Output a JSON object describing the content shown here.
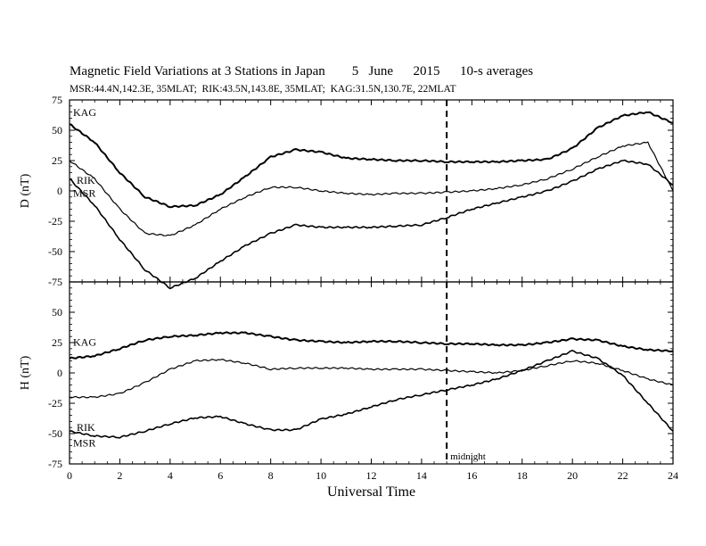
{
  "header": {
    "title_main": "Magnetic Field Variations at 3 Stations in Japan",
    "title_date": "5   June      2015",
    "title_avg": "10-s averages",
    "subtitle": "MSR:44.4N,142.3E, 35MLAT;  RIK:43.5N,143.8E, 35MLAT;  KAG:31.5N,130.7E, 22MLAT"
  },
  "annotations": {
    "midnight": "midnight"
  },
  "chart_data": [
    {
      "type": "line",
      "panel": "D",
      "ylabel": "D (nT)",
      "xlabel": "Universal Time",
      "xlim": [
        0,
        24
      ],
      "ylim": [
        -75,
        75
      ],
      "yticks": [
        -75,
        -50,
        -25,
        0,
        25,
        50,
        75
      ],
      "xticks": [
        0,
        2,
        4,
        6,
        8,
        10,
        12,
        14,
        16,
        18,
        20,
        22,
        24
      ],
      "vline": 15,
      "x": [
        0,
        1,
        2,
        3,
        4,
        5,
        6,
        7,
        8,
        9,
        10,
        11,
        12,
        13,
        14,
        15,
        16,
        17,
        18,
        19,
        20,
        21,
        22,
        23,
        24
      ],
      "series": [
        {
          "name": "KAG",
          "values": [
            55,
            40,
            15,
            -5,
            -13,
            -12,
            -3,
            12,
            28,
            34,
            32,
            27,
            26,
            25,
            25,
            24,
            24,
            24,
            25,
            26,
            35,
            52,
            62,
            65,
            56
          ]
        },
        {
          "name": "RIK",
          "values": [
            25,
            10,
            -15,
            -35,
            -37,
            -28,
            -15,
            -5,
            3,
            3,
            0,
            -2,
            -3,
            -2,
            -2,
            -1,
            0,
            2,
            5,
            10,
            18,
            28,
            37,
            40,
            0
          ]
        },
        {
          "name": "MSR",
          "values": [
            10,
            -12,
            -40,
            -65,
            -80,
            -72,
            -58,
            -45,
            -35,
            -28,
            -30,
            -30,
            -30,
            -29,
            -28,
            -22,
            -15,
            -10,
            -5,
            0,
            8,
            18,
            25,
            22,
            5
          ]
        }
      ]
    },
    {
      "type": "line",
      "panel": "H",
      "ylabel": "H (nT)",
      "xlabel": "Universal Time",
      "xlim": [
        0,
        24
      ],
      "ylim": [
        -75,
        75
      ],
      "yticks": [
        -75,
        -50,
        -25,
        0,
        25,
        50,
        75
      ],
      "xticks": [
        0,
        2,
        4,
        6,
        8,
        10,
        12,
        14,
        16,
        18,
        20,
        22,
        24
      ],
      "vline": 15,
      "x": [
        0,
        1,
        2,
        3,
        4,
        5,
        6,
        7,
        8,
        9,
        10,
        11,
        12,
        13,
        14,
        15,
        16,
        17,
        18,
        19,
        20,
        21,
        22,
        23,
        24
      ],
      "series": [
        {
          "name": "KAG",
          "values": [
            12,
            14,
            20,
            27,
            30,
            31,
            33,
            33,
            30,
            27,
            26,
            25,
            26,
            26,
            25,
            24,
            24,
            23,
            23,
            25,
            28,
            27,
            22,
            19,
            18
          ]
        },
        {
          "name": "RIK",
          "values": [
            -20,
            -20,
            -17,
            -8,
            3,
            10,
            11,
            8,
            3,
            4,
            4,
            4,
            3,
            3,
            3,
            2,
            1,
            0,
            2,
            6,
            10,
            8,
            2,
            -5,
            -10
          ]
        },
        {
          "name": "MSR",
          "values": [
            -48,
            -52,
            -53,
            -48,
            -42,
            -37,
            -36,
            -42,
            -47,
            -47,
            -38,
            -34,
            -28,
            -22,
            -18,
            -14,
            -10,
            -5,
            2,
            10,
            18,
            12,
            -2,
            -25,
            -48
          ]
        }
      ]
    }
  ]
}
